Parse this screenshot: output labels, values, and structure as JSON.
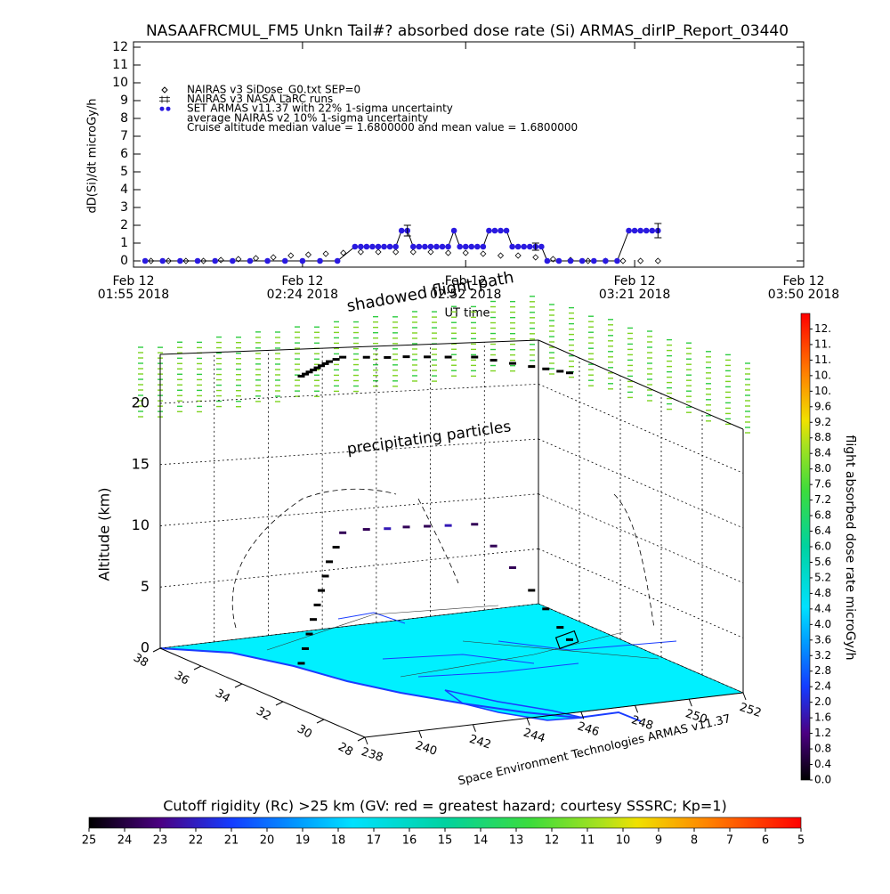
{
  "chart_data": [
    {
      "type": "line",
      "title": "NASAAFRCMUL_FM5 Unkn Tail#? absorbed dose rate (Si) ARMAS_dirIP_Report_03440",
      "ylabel": "dD(Si)/dt microGy/h",
      "xlabel": "UT time",
      "xlim": [
        "01:55",
        "03:50"
      ],
      "xticks": [
        {
          "value": "01:55",
          "label": [
            "Feb 12",
            "01:55 2018"
          ]
        },
        {
          "value": "02:24",
          "label": [
            "Feb 12",
            "02:24 2018"
          ]
        },
        {
          "value": "02:52",
          "label": [
            "Feb 12",
            "02:52 2018"
          ]
        },
        {
          "value": "03:21",
          "label": [
            "Feb 12",
            "03:21 2018"
          ]
        },
        {
          "value": "03:50",
          "label": [
            "Feb 12",
            "03:50 2018"
          ]
        }
      ],
      "ylim": [
        -0.35,
        12.3
      ],
      "yticks": [
        0,
        1,
        2,
        3,
        4,
        5,
        6,
        7,
        8,
        9,
        10,
        11,
        12
      ],
      "legend": [
        "NAIRAS v3 SiDose_G0.txt SEP=0",
        "NAIRAS v3 NASA LaRC runs",
        "SET ARMAS v11.37 with 22% 1-sigma uncertainty",
        "average NAIRAS v2 10% 1-sigma uncertainty",
        "Cruise altitude median value = 1.6800000 and mean value = 1.6800000"
      ],
      "series": [
        {
          "marker": "diamond",
          "color": "#000000",
          "x": [
            "01:58",
            "02:01",
            "02:04",
            "02:07",
            "02:10",
            "02:13",
            "02:16",
            "02:19",
            "02:22",
            "02:25",
            "02:28",
            "02:31",
            "02:34",
            "02:37",
            "02:40",
            "02:43",
            "02:46",
            "02:49",
            "02:52",
            "02:55",
            "02:58",
            "03:01",
            "03:04",
            "03:07",
            "03:10",
            "03:13",
            "03:16",
            "03:19",
            "03:22",
            "03:25"
          ],
          "values": [
            0,
            0,
            0,
            0,
            0.05,
            0.1,
            0.15,
            0.2,
            0.3,
            0.35,
            0.4,
            0.45,
            0.5,
            0.5,
            0.5,
            0.5,
            0.5,
            0.45,
            0.45,
            0.4,
            0.3,
            0.3,
            0.2,
            0.1,
            0.05,
            0,
            0,
            0,
            0,
            0
          ]
        },
        {
          "marker": "dot",
          "color": "#2a1ae0",
          "line_color": "#000000",
          "x": [
            "01:57",
            "02:00",
            "02:03",
            "02:06",
            "02:09",
            "02:12",
            "02:15",
            "02:18",
            "02:21",
            "02:24",
            "02:27",
            "02:30",
            "02:33",
            "02:34",
            "02:35",
            "02:36",
            "02:37",
            "02:38",
            "02:39",
            "02:40",
            "02:41",
            "02:42",
            "02:43",
            "02:44",
            "02:45",
            "02:46",
            "02:47",
            "02:48",
            "02:49",
            "02:50",
            "02:51",
            "02:52",
            "02:53",
            "02:54",
            "02:55",
            "02:56",
            "02:57",
            "02:58",
            "02:59",
            "03:00",
            "03:01",
            "03:02",
            "03:03",
            "03:04",
            "03:05",
            "03:06",
            "03:08",
            "03:10",
            "03:12",
            "03:14",
            "03:16",
            "03:18",
            "03:20",
            "03:21",
            "03:22",
            "03:23",
            "03:24",
            "03:25"
          ],
          "values": [
            0,
            0,
            0,
            0,
            0,
            0,
            0,
            0,
            0,
            0,
            0,
            0,
            0.8,
            0.8,
            0.8,
            0.8,
            0.8,
            0.8,
            0.8,
            0.8,
            1.7,
            1.7,
            0.8,
            0.8,
            0.8,
            0.8,
            0.8,
            0.8,
            0.8,
            1.7,
            0.8,
            0.8,
            0.8,
            0.8,
            0.8,
            1.7,
            1.7,
            1.7,
            1.7,
            0.8,
            0.8,
            0.8,
            0.8,
            0.8,
            0.8,
            0,
            0,
            0,
            0,
            0,
            0,
            0,
            1.7,
            1.7,
            1.7,
            1.7,
            1.7,
            1.7
          ]
        }
      ],
      "errorbars": {
        "color": "#000000",
        "x": [
          "02:42",
          "03:04",
          "03:25"
        ],
        "values": [
          1.7,
          0.8,
          1.7
        ],
        "errors": [
          0.3,
          0.2,
          0.4
        ]
      }
    },
    {
      "type": "scatter3d",
      "zlabel": "Altitude (km)",
      "xlim": [
        238,
        252
      ],
      "ylim": [
        28,
        38
      ],
      "zlim": [
        0,
        24
      ],
      "xticks": [
        238,
        240,
        242,
        244,
        246,
        248,
        250,
        252
      ],
      "yticks": [
        28,
        30,
        32,
        34,
        36,
        38
      ],
      "zticks": [
        0,
        5,
        10,
        15,
        20
      ],
      "annotations": [
        "shadowed flight path",
        "precipitating particles",
        "Space Environment Technologies ARMAS v11.37"
      ],
      "lon": [
        241.1,
        241.4,
        241.7,
        242.0,
        242.3,
        242.6,
        242.9,
        243.2,
        243.6,
        244.0,
        244.8,
        245.5,
        246.2,
        246.9,
        247.6,
        248.5,
        248.9,
        249.3,
        249.7,
        250.0,
        250.3,
        250.5
      ],
      "lat": [
        35.2,
        35.4,
        35.6,
        35.8,
        36.0,
        36.2,
        36.4,
        36.6,
        36.8,
        37.0,
        36.9,
        36.8,
        36.8,
        36.7,
        36.6,
        36.5,
        36.1,
        35.7,
        35.3,
        35.0,
        34.7,
        34.5
      ],
      "alt": [
        0,
        1,
        2,
        3,
        4,
        5,
        6,
        7,
        8,
        9,
        9.2,
        9.2,
        9.2,
        9.2,
        9.2,
        9.2,
        7.5,
        5.8,
        4,
        2.5,
        1,
        0
      ],
      "dose": [
        0,
        0,
        0,
        0,
        0,
        0,
        0,
        0,
        0,
        0.8,
        0.8,
        1.7,
        0.8,
        0.8,
        1.7,
        0.8,
        0.8,
        0.8,
        0,
        0,
        0,
        0
      ],
      "colorbar": {
        "label": "flight absorbed dose rate microGy/h",
        "lim": [
          0,
          12
        ],
        "ticks": [
          {
            "value": 0,
            "label": "0.0"
          },
          0.4,
          0.8,
          1.2,
          1.6,
          {
            "value": 2,
            "label": "2.0"
          },
          2.4,
          2.8,
          3.2,
          3.6,
          {
            "value": 4,
            "label": "4.0"
          },
          4.4,
          4.8,
          5.2,
          5.6,
          {
            "value": 6,
            "label": "6.0"
          },
          6.4,
          6.8,
          7.2,
          7.6,
          {
            "value": 8,
            "label": "8.0"
          },
          8.4,
          8.8,
          9.2,
          9.6,
          {
            "value": 10,
            "label": "10."
          },
          {
            "value": 10.4,
            "label": "10."
          },
          {
            "value": 10.8,
            "label": "11."
          },
          {
            "value": 11.2,
            "label": "11."
          },
          {
            "value": 11.6,
            "label": "12."
          }
        ]
      },
      "cutoff_colorbar": {
        "title": "Cutoff rigidity (Rc) >25 km (GV: red = greatest hazard; courtesy SSSRC; Kp=1)",
        "lim": [
          25,
          5
        ],
        "ticks": [
          25,
          24,
          23,
          22,
          21,
          20,
          19,
          18,
          17,
          16,
          15,
          14,
          13,
          12,
          11,
          10,
          9,
          8,
          7,
          6,
          5
        ]
      }
    }
  ]
}
